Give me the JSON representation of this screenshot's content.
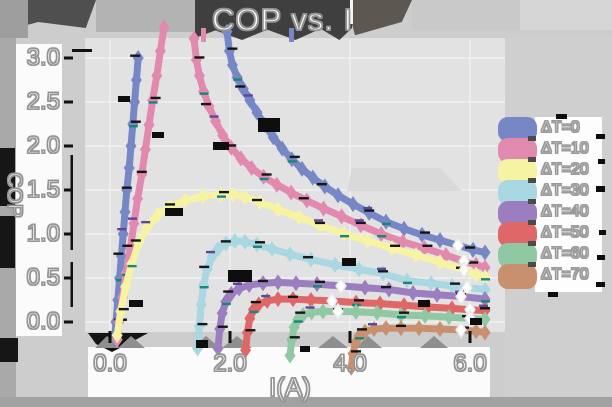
{
  "title": "COP vs. I",
  "chart_data": {
    "type": "line",
    "title": "COP vs. I",
    "xlabel": "I(A)",
    "ylabel": "COP",
    "x_ticks": [
      "0.0",
      "2.0",
      "4.0",
      "6.0"
    ],
    "x_tick_values": [
      0,
      2,
      4,
      6
    ],
    "y_ticks": [
      "3.0",
      "2.5",
      "2.0",
      "1.5",
      "1.0",
      "0.5",
      "0.0"
    ],
    "y_tick_values": [
      3,
      2.5,
      2,
      1.5,
      1,
      0.5,
      0
    ],
    "xlim": [
      -0.4,
      6.6
    ],
    "ylim": [
      -0.55,
      3.4
    ],
    "grid": true,
    "legend_position": "right",
    "marker": "diamond",
    "series": [
      {
        "name": "ΔT=0",
        "color": "#7787c6",
        "open_at": [
          5.9
        ],
        "branches": [
          [
            [
              0.08,
              -0.18
            ],
            [
              0.1,
              0.0
            ],
            [
              0.13,
              0.25
            ],
            [
              0.16,
              0.5
            ],
            [
              0.19,
              0.75
            ],
            [
              0.22,
              1.0
            ],
            [
              0.25,
              1.25
            ],
            [
              0.28,
              1.5
            ],
            [
              0.32,
              1.75
            ],
            [
              0.35,
              2.0
            ],
            [
              0.38,
              2.25
            ],
            [
              0.41,
              2.5
            ],
            [
              0.44,
              2.75
            ],
            [
              0.47,
              3.0
            ]
          ],
          [
            [
              1.95,
              3.3
            ],
            [
              1.99,
              3.08
            ],
            [
              2.04,
              2.92
            ],
            [
              2.12,
              2.78
            ],
            [
              2.22,
              2.65
            ],
            [
              2.33,
              2.52
            ],
            [
              2.45,
              2.38
            ],
            [
              2.58,
              2.24
            ],
            [
              2.72,
              2.1
            ],
            [
              2.87,
              1.97
            ],
            [
              3.03,
              1.85
            ],
            [
              3.2,
              1.74
            ],
            [
              3.38,
              1.64
            ],
            [
              3.58,
              1.54
            ],
            [
              3.8,
              1.44
            ],
            [
              4.05,
              1.34
            ],
            [
              4.32,
              1.24
            ],
            [
              4.6,
              1.14
            ],
            [
              4.9,
              1.06
            ],
            [
              5.2,
              0.99
            ],
            [
              5.5,
              0.93
            ],
            [
              5.8,
              0.87
            ],
            [
              6.05,
              0.82
            ],
            [
              6.25,
              0.79
            ]
          ]
        ]
      },
      {
        "name": "ΔT=10",
        "color": "#e289af",
        "open_at": [
          5.9
        ],
        "branches": [
          [
            [
              0.12,
              -0.2
            ],
            [
              0.15,
              0.0
            ],
            [
              0.21,
              0.28
            ],
            [
              0.27,
              0.56
            ],
            [
              0.34,
              0.84
            ],
            [
              0.4,
              1.12
            ],
            [
              0.46,
              1.4
            ],
            [
              0.53,
              1.68
            ],
            [
              0.59,
              1.96
            ],
            [
              0.65,
              2.24
            ],
            [
              0.71,
              2.52
            ],
            [
              0.78,
              2.8
            ],
            [
              0.84,
              3.08
            ],
            [
              0.9,
              3.35
            ]
          ],
          [
            [
              1.4,
              3.22
            ],
            [
              1.44,
              2.98
            ],
            [
              1.49,
              2.8
            ],
            [
              1.56,
              2.62
            ],
            [
              1.65,
              2.45
            ],
            [
              1.76,
              2.28
            ],
            [
              1.88,
              2.12
            ],
            [
              2.02,
              1.98
            ],
            [
              2.18,
              1.86
            ],
            [
              2.36,
              1.75
            ],
            [
              2.56,
              1.65
            ],
            [
              2.78,
              1.56
            ],
            [
              3.02,
              1.47
            ],
            [
              3.28,
              1.38
            ],
            [
              3.56,
              1.29
            ],
            [
              3.86,
              1.2
            ],
            [
              4.18,
              1.1
            ],
            [
              4.52,
              1.0
            ],
            [
              4.88,
              0.91
            ],
            [
              5.24,
              0.84
            ],
            [
              5.6,
              0.76
            ],
            [
              5.9,
              0.69
            ],
            [
              6.1,
              0.65
            ],
            [
              6.25,
              0.62
            ]
          ]
        ]
      },
      {
        "name": "ΔT=20",
        "color": "#f6f3a3",
        "open_at": [
          5.9
        ],
        "branches": [
          [
            [
              0.12,
              -0.15
            ],
            [
              0.18,
              0.12
            ],
            [
              0.26,
              0.4
            ],
            [
              0.36,
              0.66
            ],
            [
              0.48,
              0.9
            ],
            [
              0.62,
              1.08
            ],
            [
              0.8,
              1.22
            ],
            [
              1.0,
              1.31
            ],
            [
              1.25,
              1.38
            ],
            [
              1.55,
              1.43
            ],
            [
              1.85,
              1.45
            ],
            [
              2.05,
              1.45
            ],
            [
              2.25,
              1.42
            ],
            [
              2.5,
              1.36
            ],
            [
              2.8,
              1.28
            ],
            [
              3.15,
              1.19
            ],
            [
              3.5,
              1.1
            ],
            [
              3.9,
              1.0
            ],
            [
              4.3,
              0.92
            ],
            [
              4.7,
              0.84
            ],
            [
              5.1,
              0.76
            ],
            [
              5.5,
              0.68
            ],
            [
              5.9,
              0.59
            ],
            [
              6.1,
              0.54
            ],
            [
              6.25,
              0.51
            ]
          ]
        ]
      },
      {
        "name": "ΔT=30",
        "color": "#a9d7e2",
        "open_at": [
          5.9
        ],
        "branches": [
          [
            [
              1.46,
              -0.3
            ],
            [
              1.49,
              -0.05
            ],
            [
              1.52,
              0.2
            ],
            [
              1.56,
              0.42
            ],
            [
              1.62,
              0.6
            ],
            [
              1.7,
              0.74
            ],
            [
              1.8,
              0.83
            ],
            [
              1.93,
              0.89
            ],
            [
              2.08,
              0.92
            ],
            [
              2.25,
              0.91
            ],
            [
              2.45,
              0.88
            ],
            [
              2.7,
              0.83
            ],
            [
              3.0,
              0.77
            ],
            [
              3.35,
              0.71
            ],
            [
              3.75,
              0.65
            ],
            [
              4.15,
              0.6
            ],
            [
              4.55,
              0.55
            ],
            [
              4.95,
              0.47
            ],
            [
              5.35,
              0.44
            ],
            [
              5.7,
              0.41
            ],
            [
              5.95,
              0.39
            ],
            [
              6.25,
              0.37
            ]
          ]
        ]
      },
      {
        "name": "ΔT=40",
        "color": "#9b7ec0",
        "open_at": [
          3.85,
          5.9
        ],
        "branches": [
          [
            [
              1.8,
              -0.3
            ],
            [
              1.83,
              -0.08
            ],
            [
              1.87,
              0.1
            ],
            [
              1.93,
              0.23
            ],
            [
              2.02,
              0.32
            ],
            [
              2.15,
              0.38
            ],
            [
              2.32,
              0.42
            ],
            [
              2.55,
              0.44
            ],
            [
              2.8,
              0.45
            ],
            [
              3.1,
              0.44
            ],
            [
              3.45,
              0.43
            ],
            [
              3.85,
              0.41
            ],
            [
              4.25,
              0.39
            ],
            [
              4.65,
              0.37
            ],
            [
              5.05,
              0.33
            ],
            [
              5.45,
              0.31
            ],
            [
              5.85,
              0.29
            ],
            [
              6.25,
              0.26
            ]
          ]
        ]
      },
      {
        "name": "ΔT=50",
        "color": "#e06767",
        "open_at": [
          3.7,
          5.9
        ],
        "branches": [
          [
            [
              2.26,
              -0.32
            ],
            [
              2.29,
              -0.12
            ],
            [
              2.33,
              0.04
            ],
            [
              2.39,
              0.14
            ],
            [
              2.48,
              0.2
            ],
            [
              2.62,
              0.24
            ],
            [
              2.8,
              0.26
            ],
            [
              3.05,
              0.26
            ],
            [
              3.35,
              0.25
            ],
            [
              3.7,
              0.24
            ],
            [
              4.1,
              0.22
            ],
            [
              4.5,
              0.21
            ],
            [
              4.9,
              0.19
            ],
            [
              5.3,
              0.17
            ],
            [
              5.7,
              0.155
            ],
            [
              6.0,
              0.14
            ],
            [
              6.25,
              0.13
            ]
          ]
        ]
      },
      {
        "name": "ΔT=60",
        "color": "#90c8a4",
        "open_at": [
          3.8,
          5.9
        ],
        "branches": [
          [
            [
              3.0,
              -0.38
            ],
            [
              3.03,
              -0.2
            ],
            [
              3.07,
              -0.06
            ],
            [
              3.13,
              0.03
            ],
            [
              3.22,
              0.08
            ],
            [
              3.36,
              0.11
            ],
            [
              3.55,
              0.12
            ],
            [
              3.8,
              0.12
            ],
            [
              4.1,
              0.115
            ],
            [
              4.45,
              0.105
            ],
            [
              4.85,
              0.08
            ],
            [
              5.25,
              0.07
            ],
            [
              5.65,
              0.055
            ],
            [
              6.0,
              0.04
            ],
            [
              6.25,
              0.03
            ]
          ]
        ]
      },
      {
        "name": "ΔT=70",
        "color": "#c8906e",
        "open_at": [
          5.9
        ],
        "branches": [
          [
            [
              4.02,
              -0.52
            ],
            [
              4.05,
              -0.36
            ],
            [
              4.09,
              -0.24
            ],
            [
              4.15,
              -0.16
            ],
            [
              4.25,
              -0.11
            ],
            [
              4.4,
              -0.08
            ],
            [
              4.6,
              -0.07
            ],
            [
              4.85,
              -0.07
            ],
            [
              5.15,
              -0.07
            ],
            [
              5.5,
              -0.08
            ],
            [
              5.85,
              -0.09
            ],
            [
              6.1,
              -0.105
            ],
            [
              6.25,
              -0.12
            ]
          ]
        ]
      }
    ]
  }
}
